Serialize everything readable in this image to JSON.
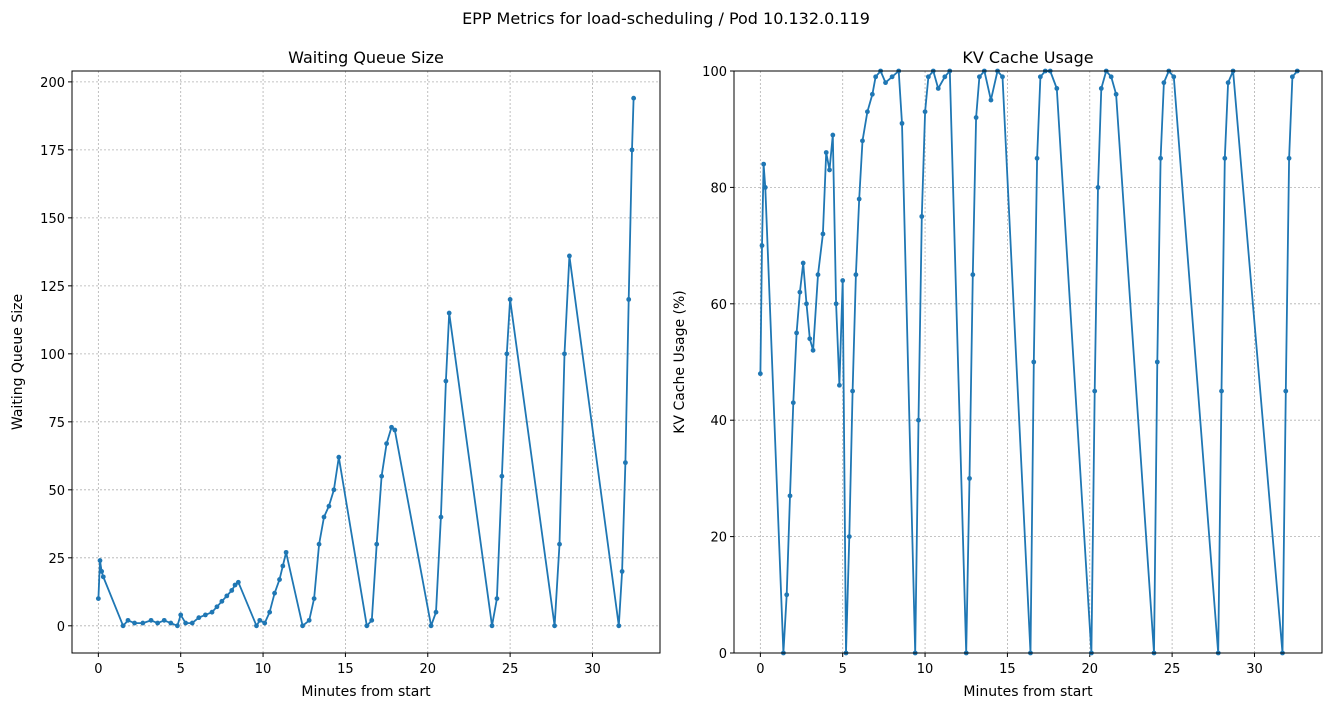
{
  "figure": {
    "suptitle": "EPP Metrics for load-scheduling / Pod 10.132.0.119"
  },
  "chart_data": [
    {
      "type": "line",
      "title": "Waiting Queue Size",
      "xlabel": "Minutes from start",
      "ylabel": "Waiting Queue Size",
      "xlim": [
        -1.6,
        34.1
      ],
      "ylim": [
        -10,
        204
      ],
      "xticks": [
        0,
        5,
        10,
        15,
        20,
        25,
        30
      ],
      "yticks": [
        0,
        25,
        50,
        75,
        100,
        125,
        150,
        175,
        200
      ],
      "grid": true,
      "color": "#1f77b4",
      "marker": "dot",
      "series": [
        {
          "x": [
            0.0,
            0.1,
            0.2,
            0.3,
            1.5,
            1.8,
            2.2,
            2.7,
            3.2,
            3.6,
            4.0,
            4.4,
            4.8,
            5.0,
            5.3,
            5.7,
            6.1,
            6.5,
            6.9,
            7.2,
            7.5,
            7.8,
            8.1,
            8.3,
            8.5,
            9.6,
            9.8,
            10.1,
            10.4,
            10.7,
            11.0,
            11.2,
            11.4,
            12.4,
            12.8,
            13.1,
            13.4,
            13.7,
            14.0,
            14.3,
            14.6,
            16.3,
            16.6,
            16.9,
            17.2,
            17.5,
            17.8,
            18.0,
            20.2,
            20.5,
            20.8,
            21.1,
            21.3,
            23.9,
            24.2,
            24.5,
            24.8,
            25.0,
            27.7,
            28.0,
            28.3,
            28.6,
            31.6,
            31.8,
            32.0,
            32.2,
            32.4,
            32.5
          ],
          "y": [
            10,
            24,
            20,
            18,
            0,
            2,
            1,
            1,
            2,
            1,
            2,
            1,
            0,
            4,
            1,
            1,
            3,
            4,
            5,
            7,
            9,
            11,
            13,
            15,
            16,
            0,
            2,
            1,
            5,
            12,
            17,
            22,
            27,
            0,
            2,
            10,
            30,
            40,
            44,
            50,
            62,
            0,
            2,
            30,
            55,
            67,
            73,
            72,
            0,
            5,
            40,
            90,
            115,
            0,
            10,
            55,
            100,
            120,
            0,
            30,
            100,
            136,
            0,
            20,
            60,
            120,
            175,
            194
          ]
        }
      ]
    },
    {
      "type": "line",
      "title": "KV Cache Usage",
      "xlabel": "Minutes from start",
      "ylabel": "KV Cache Usage (%)",
      "xlim": [
        -1.6,
        34.1
      ],
      "ylim": [
        0,
        100
      ],
      "xticks": [
        0,
        5,
        10,
        15,
        20,
        25,
        30
      ],
      "yticks": [
        0,
        20,
        40,
        60,
        80,
        100
      ],
      "grid": true,
      "color": "#1f77b4",
      "marker": "dot",
      "series": [
        {
          "x": [
            0.0,
            0.1,
            0.2,
            0.3,
            1.4,
            1.6,
            1.8,
            2.0,
            2.2,
            2.4,
            2.6,
            2.8,
            3.0,
            3.2,
            3.5,
            3.8,
            4.0,
            4.2,
            4.4,
            4.6,
            4.8,
            5.0,
            5.2,
            5.4,
            5.6,
            5.8,
            6.0,
            6.2,
            6.5,
            6.8,
            7.0,
            7.3,
            7.6,
            8.0,
            8.4,
            8.6,
            9.4,
            9.6,
            9.8,
            10.0,
            10.2,
            10.5,
            10.8,
            11.2,
            11.5,
            12.5,
            12.7,
            12.9,
            13.1,
            13.3,
            13.6,
            14.0,
            14.4,
            14.7,
            16.4,
            16.6,
            16.8,
            17.0,
            17.3,
            17.6,
            18.0,
            20.1,
            20.3,
            20.5,
            20.7,
            21.0,
            21.3,
            21.6,
            23.9,
            24.1,
            24.3,
            24.5,
            24.8,
            25.1,
            27.8,
            28.0,
            28.2,
            28.4,
            28.7,
            31.7,
            31.9,
            32.1,
            32.3,
            32.6
          ],
          "y": [
            48,
            70,
            84,
            80,
            0,
            10,
            27,
            43,
            55,
            62,
            67,
            60,
            54,
            52,
            65,
            72,
            86,
            83,
            89,
            60,
            46,
            64,
            0,
            20,
            45,
            65,
            78,
            88,
            93,
            96,
            99,
            100,
            98,
            99,
            100,
            91,
            0,
            40,
            75,
            93,
            99,
            100,
            97,
            99,
            100,
            0,
            30,
            65,
            92,
            99,
            100,
            95,
            100,
            99,
            0,
            50,
            85,
            99,
            100,
            100,
            97,
            0,
            45,
            80,
            97,
            100,
            99,
            96,
            0,
            50,
            85,
            98,
            100,
            99,
            0,
            45,
            85,
            98,
            100,
            0,
            45,
            85,
            99,
            100
          ]
        }
      ]
    }
  ]
}
